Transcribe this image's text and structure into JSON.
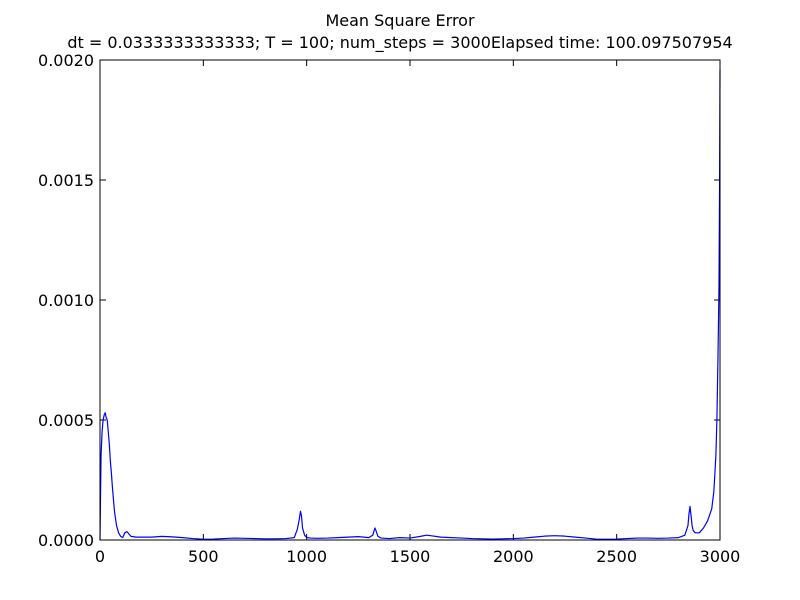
{
  "chart_data": {
    "type": "line",
    "title": "Mean Square Error",
    "subtitle": "dt = 0.0333333333333; T = 100; num_steps = 3000Elapsed time: 100.097507954",
    "xlabel": "",
    "ylabel": "",
    "xlim": [
      0,
      3000
    ],
    "ylim": [
      0,
      0.002
    ],
    "x_ticks": [
      "0",
      "500",
      "1000",
      "1500",
      "2000",
      "2500",
      "3000"
    ],
    "y_ticks": [
      "0.0000",
      "0.0005",
      "0.0010",
      "0.0015",
      "0.0020"
    ],
    "grid": false,
    "legend": "none",
    "series": [
      {
        "color": "#0000ff",
        "x": [
          0,
          5,
          10,
          15,
          20,
          25,
          30,
          35,
          40,
          45,
          50,
          55,
          60,
          70,
          80,
          90,
          100,
          110,
          120,
          130,
          140,
          150,
          175,
          200,
          250,
          300,
          350,
          400,
          450,
          500,
          550,
          600,
          650,
          700,
          750,
          800,
          850,
          900,
          940,
          955,
          965,
          970,
          975,
          980,
          990,
          1000,
          1020,
          1050,
          1100,
          1150,
          1200,
          1250,
          1300,
          1320,
          1330,
          1335,
          1345,
          1360,
          1400,
          1450,
          1500,
          1550,
          1580,
          1600,
          1650,
          1700,
          1750,
          1800,
          1850,
          1900,
          1950,
          2000,
          2050,
          2100,
          2150,
          2200,
          2250,
          2300,
          2350,
          2400,
          2450,
          2500,
          2550,
          2600,
          2650,
          2700,
          2750,
          2800,
          2830,
          2845,
          2850,
          2855,
          2860,
          2865,
          2870,
          2880,
          2900,
          2920,
          2940,
          2960,
          2970,
          2980,
          2985,
          2990,
          2995,
          2998,
          3000
        ],
        "y": [
          0.0,
          0.00035,
          0.00045,
          0.0005,
          0.00052,
          0.00053,
          0.00051,
          0.0005,
          0.00045,
          0.0004,
          0.00033,
          0.00028,
          0.00022,
          0.00012,
          6e-05,
          3e-05,
          1.5e-05,
          1e-05,
          3e-05,
          3.5e-05,
          2.5e-05,
          1.5e-05,
          1.2e-05,
          1.2e-05,
          1.2e-05,
          1.5e-05,
          1.3e-05,
          1e-05,
          6e-06,
          3e-06,
          4e-06,
          6e-06,
          8e-06,
          7e-06,
          6e-06,
          5e-06,
          5e-06,
          6e-06,
          1e-05,
          4.5e-05,
          9e-05,
          0.00012,
          0.0001,
          5e-05,
          2e-05,
          1e-05,
          8e-06,
          7e-06,
          8e-06,
          1e-05,
          1.2e-05,
          1.4e-05,
          1e-05,
          2e-05,
          5e-05,
          4e-05,
          1.5e-05,
          8e-06,
          6e-06,
          1e-05,
          8e-06,
          1.5e-05,
          2e-05,
          1.8e-05,
          1.2e-05,
          1e-05,
          8e-06,
          6e-06,
          5e-06,
          4e-06,
          5e-06,
          6e-06,
          8e-06,
          1.2e-05,
          1.6e-05,
          1.8e-05,
          1.6e-05,
          1.2e-05,
          8e-06,
          4e-06,
          3e-06,
          4e-06,
          6e-06,
          8e-06,
          8e-06,
          7e-06,
          8e-06,
          1e-05,
          2e-05,
          6e-05,
          0.00011,
          0.00014,
          0.0001,
          6e-05,
          4e-05,
          3e-05,
          3e-05,
          5e-05,
          8e-05,
          0.00013,
          0.0002,
          0.00035,
          0.0005,
          0.00075,
          0.00105,
          0.0015,
          0.00196
        ]
      }
    ]
  }
}
